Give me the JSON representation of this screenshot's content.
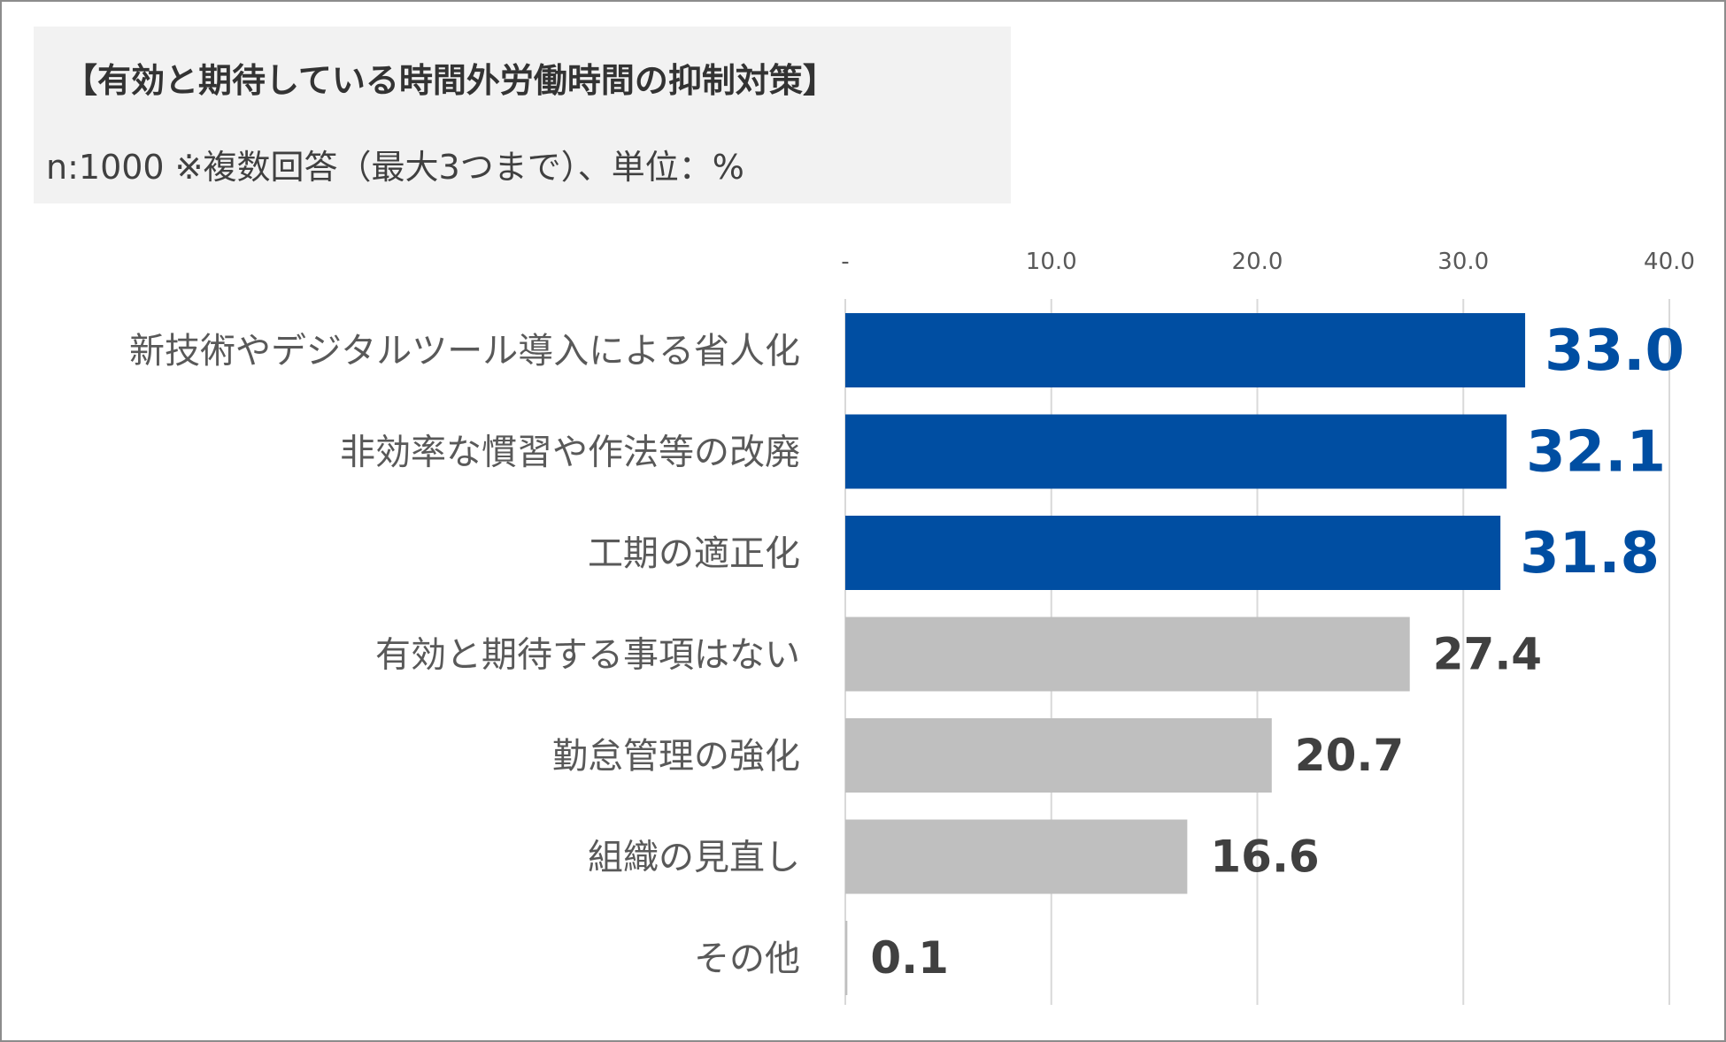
{
  "chart_data": {
    "type": "bar",
    "orientation": "horizontal",
    "title": "【有効と期待している時間外労働時間の抑制対策】",
    "subtitle": "n:1000 ※複数回答（最大3つまで）、単位：%",
    "categories": [
      "新技術やデジタルツール導入による省人化",
      "非効率な慣習や作法等の改廃",
      "工期の適正化",
      "有効と期待する事項はない",
      "勤怠管理の強化",
      "組織の見直し",
      "その他"
    ],
    "values": [
      33.0,
      32.1,
      31.8,
      27.4,
      20.7,
      16.6,
      0.1
    ],
    "value_labels": [
      "33.0",
      "32.1",
      "31.8",
      "27.4",
      "20.7",
      "16.6",
      "0.1"
    ],
    "highlighted": [
      true,
      true,
      true,
      false,
      false,
      false,
      false
    ],
    "xlim": [
      0,
      40
    ],
    "ticks": [
      0,
      10,
      20,
      30,
      40
    ],
    "tick_labels": [
      "-",
      "10.0",
      "20.0",
      "30.0",
      "40.0"
    ],
    "axis_position": "top",
    "grid": true,
    "colors": {
      "highlight": "#004ea2",
      "normal": "#bfbfbf",
      "highlight_label": "#004ea2",
      "normal_label": "#404040",
      "grid": "#d9d9d9"
    }
  }
}
